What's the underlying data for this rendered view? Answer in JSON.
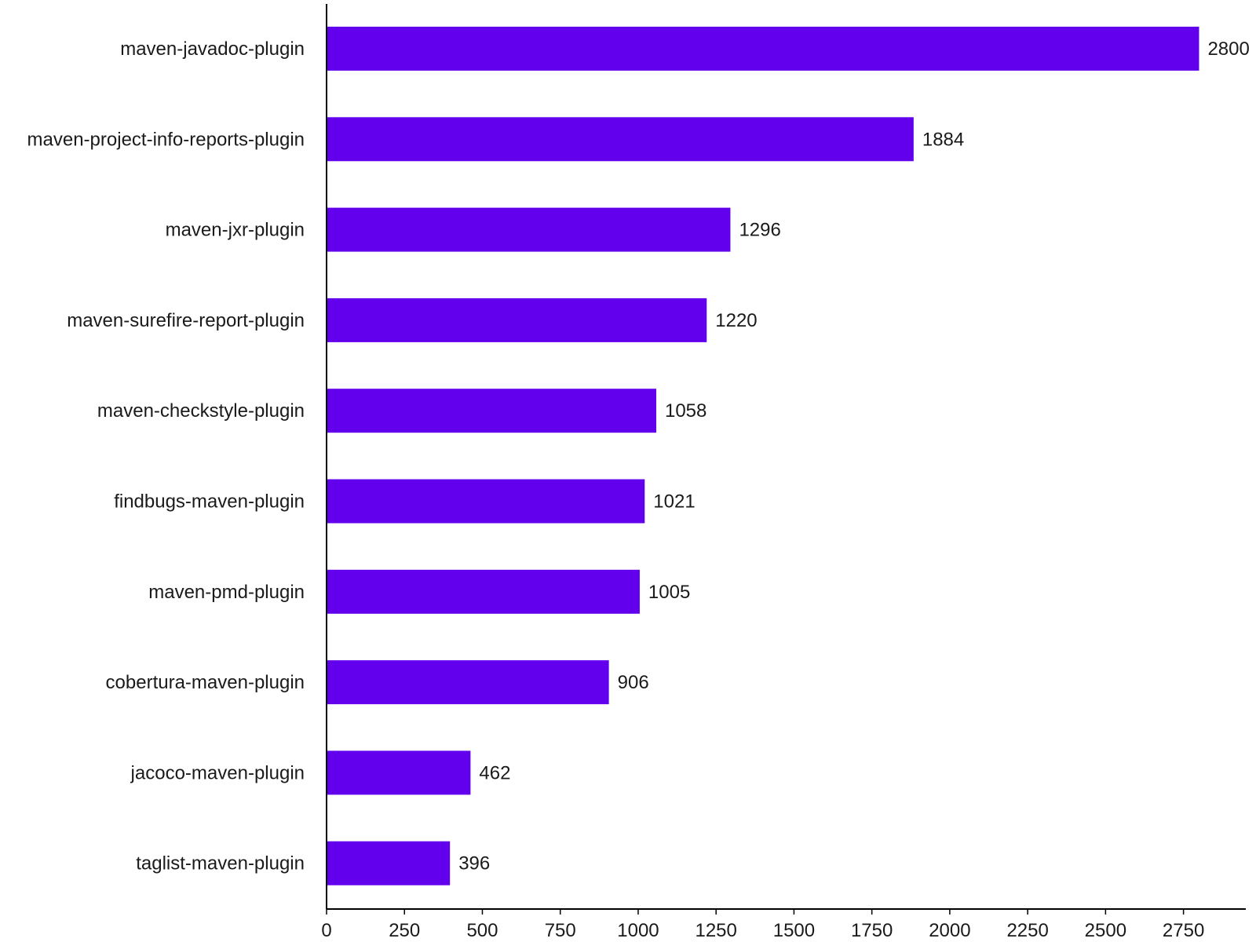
{
  "chart_data": {
    "type": "bar",
    "orientation": "horizontal",
    "categories": [
      "maven-javadoc-plugin",
      "maven-project-info-reports-plugin",
      "maven-jxr-plugin",
      "maven-surefire-report-plugin",
      "maven-checkstyle-plugin",
      "findbugs-maven-plugin",
      "maven-pmd-plugin",
      "cobertura-maven-plugin",
      "jacoco-maven-plugin",
      "taglist-maven-plugin"
    ],
    "values": [
      2800,
      1884,
      1296,
      1220,
      1058,
      1021,
      1005,
      906,
      462,
      396
    ],
    "value_labels": [
      "2800",
      "1884",
      "1296",
      "1220",
      "1058",
      "1021",
      "1005",
      "906",
      "462",
      "396"
    ],
    "title": "",
    "xlabel": "",
    "ylabel": "",
    "xlim": [
      0,
      2950
    ],
    "x_ticks": [
      0,
      250,
      500,
      750,
      1000,
      1250,
      1500,
      1750,
      2000,
      2250,
      2500,
      2750
    ],
    "x_tick_labels": [
      "0",
      "250",
      "500",
      "750",
      "1000",
      "1250",
      "1500",
      "1750",
      "2000",
      "2250",
      "2500",
      "2750"
    ],
    "grid": false,
    "legend": "none",
    "bar_color": "#6200EE"
  }
}
